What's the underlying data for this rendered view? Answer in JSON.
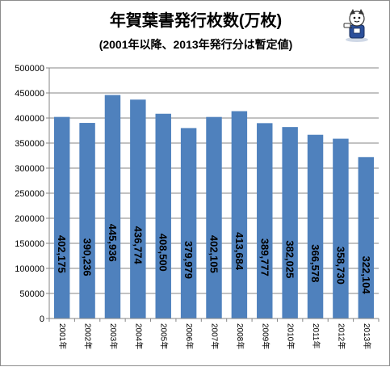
{
  "chart_data": {
    "type": "bar",
    "title": "年賀葉書発行枚数(万枚)",
    "subtitle": "(2001年以降、2013年発行分は暫定値)",
    "categories": [
      "2001年",
      "2002年",
      "2003年",
      "2004年",
      "2005年",
      "2006年",
      "2007年",
      "2008年",
      "2009年",
      "2010年",
      "2011年",
      "2012年",
      "2013年"
    ],
    "values": [
      402175,
      390236,
      445936,
      436774,
      408500,
      379979,
      402105,
      413684,
      389777,
      382025,
      366578,
      358730,
      322104
    ],
    "value_labels": [
      "402,175",
      "390,236",
      "445,936",
      "436,774",
      "408,500",
      "379,979",
      "402,105",
      "413,684",
      "389,777",
      "382,025",
      "366,578",
      "358,730",
      "322,104"
    ],
    "ylim": [
      0,
      500000
    ],
    "yticks": [
      0,
      50000,
      100000,
      150000,
      200000,
      250000,
      300000,
      350000,
      400000,
      450000,
      500000
    ],
    "ytick_labels": [
      "0",
      "50000",
      "100000",
      "150000",
      "200000",
      "250000",
      "300000",
      "350000",
      "400000",
      "450000",
      "500000"
    ],
    "grid": true,
    "bar_color": "#4f81bd",
    "grid_color": "#868686"
  },
  "mascot": {
    "icon": "mascot-character-icon"
  }
}
